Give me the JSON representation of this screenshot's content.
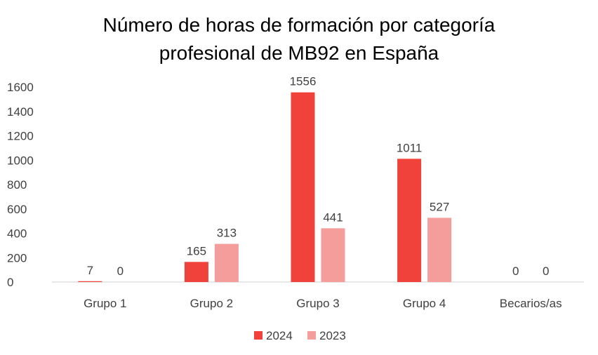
{
  "chart_data": {
    "type": "bar",
    "title_lines": [
      "Número de horas de formación por categoría",
      "profesional de MB92 en España"
    ],
    "categories": [
      "Grupo 1",
      "Grupo 2",
      "Grupo 3",
      "Grupo 4",
      "Becarios/as"
    ],
    "series": [
      {
        "name": "2024",
        "color": "#f0423a",
        "values": [
          7,
          165,
          1556,
          1011,
          0
        ]
      },
      {
        "name": "2023",
        "color": "#f59d9b",
        "values": [
          0,
          313,
          441,
          527,
          0
        ]
      }
    ],
    "data_labels": {
      "2024": [
        "7",
        "165",
        "1556",
        "1011",
        "0"
      ],
      "2023": [
        "0",
        "313",
        "441",
        "527",
        "0"
      ]
    },
    "ylim": [
      0,
      1600
    ],
    "yticks": [
      0,
      200,
      400,
      600,
      800,
      1000,
      1200,
      1400,
      1600
    ],
    "xlabel": "",
    "ylabel": "",
    "grid": false,
    "legend": "bottom-center"
  }
}
